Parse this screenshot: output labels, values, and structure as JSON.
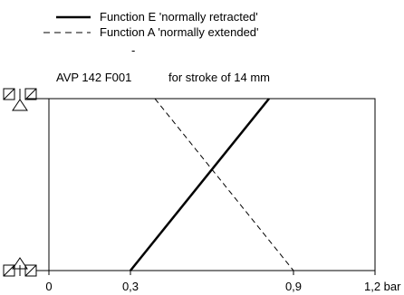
{
  "chart_data": {
    "type": "line",
    "title": "AVP 142 F001",
    "subtitle": "for stroke of 14 mm",
    "xlabel": "",
    "x_unit": "bar",
    "ylabel": "",
    "xlim": [
      0,
      1.2
    ],
    "x_ticks": [
      "0",
      "0,3",
      "0,9",
      "1,2 bar"
    ],
    "x_tick_values": [
      0,
      0.3,
      0.9,
      1.2
    ],
    "y_states": [
      "retracted",
      "extended"
    ],
    "legend_placement": "top-left",
    "series": [
      {
        "name": "Function E  'normally retracted'",
        "style": "solid",
        "x": [
          0.3,
          0.81
        ],
        "y": [
          0,
          1
        ]
      },
      {
        "name": "Function A  'normally extended'",
        "style": "dashed",
        "x": [
          0.39,
          0.9
        ],
        "y": [
          1,
          0
        ]
      }
    ],
    "legend_extra": "-"
  }
}
